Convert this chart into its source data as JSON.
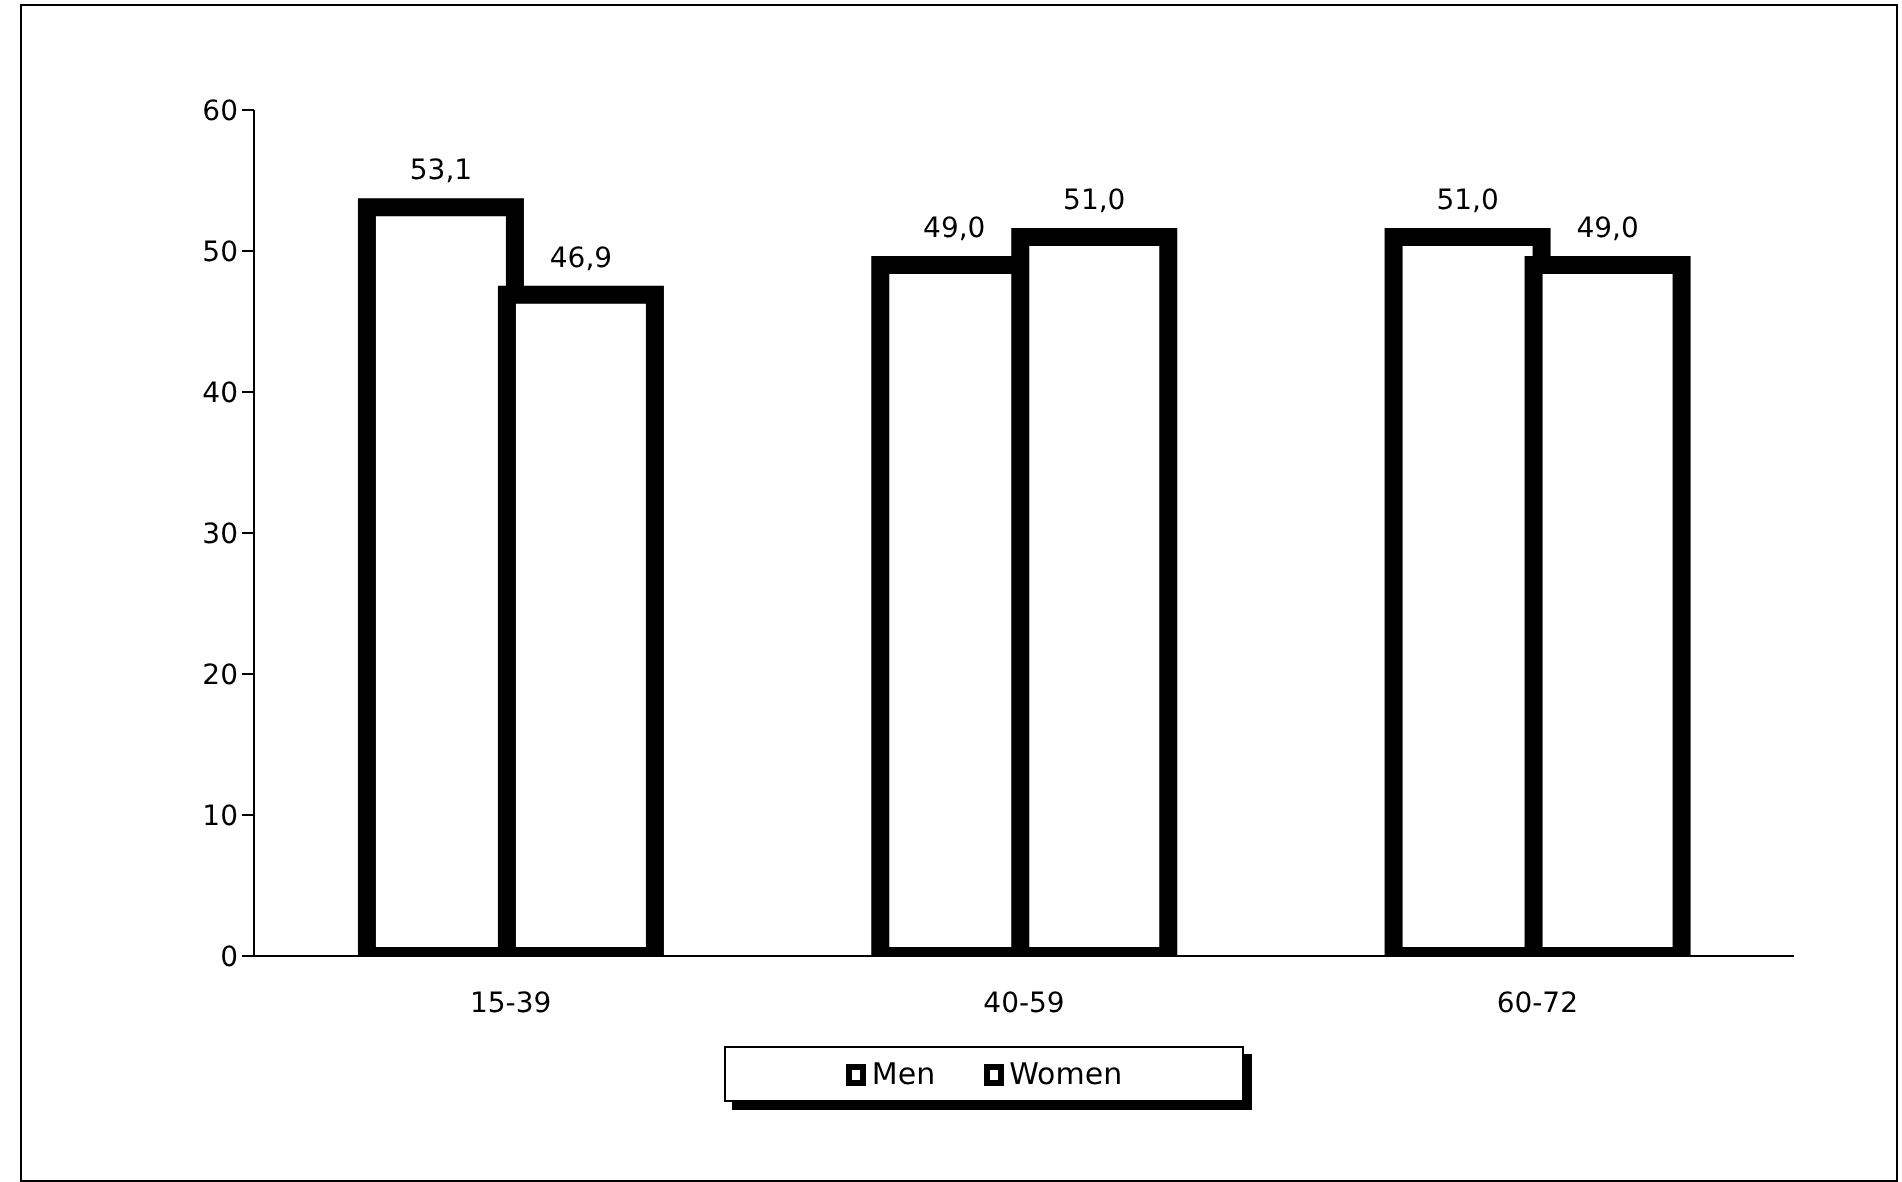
{
  "chart_data": {
    "type": "bar",
    "categories": [
      "15-39",
      "40-59",
      "60-72"
    ],
    "series": [
      {
        "name": "Men",
        "color": "#ffffff",
        "values": [
          53.1,
          49.0,
          51.0
        ],
        "value_labels": [
          "53,1",
          "49,0",
          "51,0"
        ]
      },
      {
        "name": "Women",
        "color": "#ffffff",
        "values": [
          46.9,
          51.0,
          49.0
        ],
        "value_labels": [
          "46,9",
          "51,0",
          "49,0"
        ]
      }
    ],
    "ylim": [
      0,
      60
    ],
    "yticks": [
      0,
      10,
      20,
      30,
      40,
      50,
      60
    ],
    "grid": false,
    "legend": "bottom"
  }
}
